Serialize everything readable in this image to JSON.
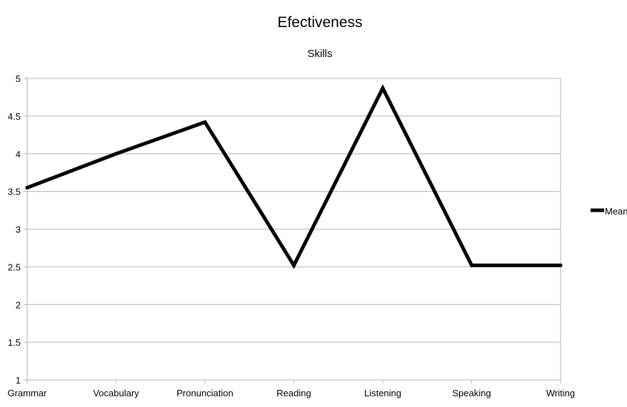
{
  "chart_data": {
    "type": "line",
    "title": "Efectiveness",
    "subtitle": "Skills",
    "xlabel": "",
    "ylabel": "",
    "categories": [
      "Grammar",
      "Vocabulary",
      "Pronunciation",
      "Reading",
      "Listening",
      "Speaking",
      "Writing"
    ],
    "series": [
      {
        "name": "Mean",
        "values": [
          3.55,
          4.0,
          4.42,
          2.52,
          4.87,
          2.52,
          2.52
        ],
        "color": "#000000"
      }
    ],
    "ylim": [
      1,
      5
    ],
    "yticks": [
      "1",
      "1.5",
      "2",
      "2.5",
      "3",
      "3.5",
      "4",
      "4.5",
      "5"
    ],
    "grid": "horizontal",
    "legend_position": "right"
  }
}
